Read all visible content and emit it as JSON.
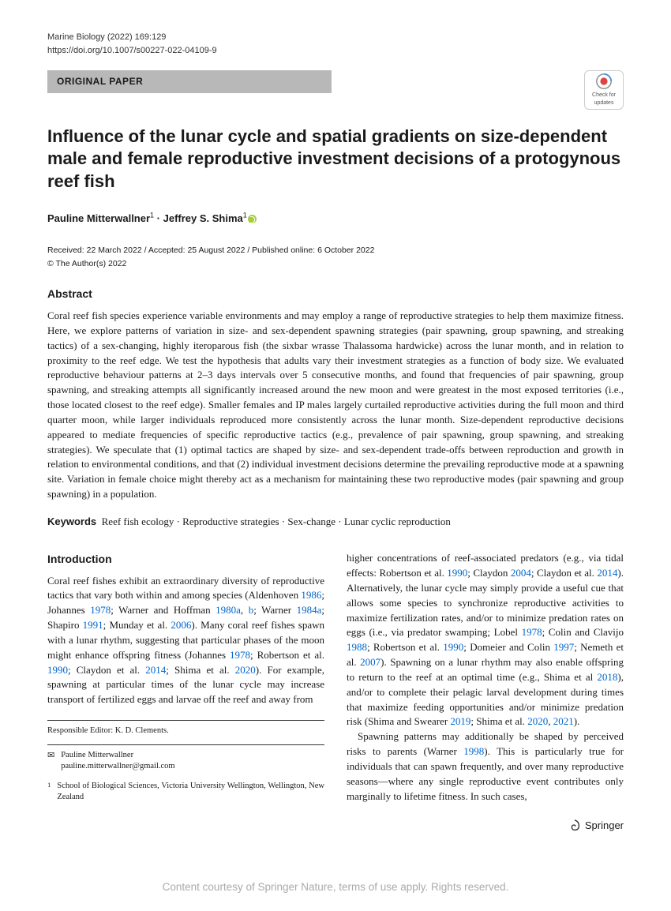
{
  "journal_citation": "Marine Biology (2022) 169:129",
  "doi": "https://doi.org/10.1007/s00227-022-04109-9",
  "paper_type": "ORIGINAL PAPER",
  "updates_badge": "Check for updates",
  "title": "Influence of the lunar cycle and spatial gradients on size-dependent male and female reproductive investment decisions of a protogynous reef fish",
  "authors_html": "Pauline Mitterwallner<sup>1</sup> · Jeffrey S. Shima<sup>1</sup>",
  "dates": "Received: 22 March 2022 / Accepted: 25 August 2022 / Published online: 6 October 2022",
  "copyright": "© The Author(s) 2022",
  "abstract_heading": "Abstract",
  "abstract": "Coral reef fish species experience variable environments and may employ a range of reproductive strategies to help them maximize fitness. Here, we explore patterns of variation in size- and sex-dependent spawning strategies (pair spawning, group spawning, and streaking tactics) of a sex-changing, highly iteroparous fish (the sixbar wrasse Thalassoma hardwicke) across the lunar month, and in relation to proximity to the reef edge. We test the hypothesis that adults vary their investment strategies as a function of body size. We evaluated reproductive behaviour patterns at 2–3 days intervals over 5 consecutive months, and found that frequencies of pair spawning, group spawning, and streaking attempts all significantly increased around the new moon and were greatest in the most exposed territories (i.e., those located closest to the reef edge). Smaller females and IP males largely curtailed reproductive activities during the full moon and third quarter moon, while larger individuals reproduced more consistently across the lunar month. Size-dependent reproductive decisions appeared to mediate frequencies of specific reproductive tactics (e.g., prevalence of pair spawning, group spawning, and streaking strategies). We speculate that (1) optimal tactics are shaped by size- and sex-dependent trade-offs between reproduction and growth in relation to environmental conditions, and that (2) individual investment decisions determine the prevailing reproductive mode at a spawning site. Variation in female choice might thereby act as a mechanism for maintaining these two reproductive modes (pair spawning and group spawning) in a population.",
  "keywords_label": "Keywords",
  "keywords": "Reef fish ecology · Reproductive strategies · Sex-change · Lunar cyclic reproduction",
  "intro_heading": "Introduction",
  "col1_para": "Coral reef fishes exhibit an extraordinary diversity of reproductive tactics that vary both within and among species (Aldenhoven <span class=\"cite-link\">1986</span>; Johannes <span class=\"cite-link\">1978</span>; Warner and Hoffman <span class=\"cite-link\">1980a</span>, <span class=\"cite-link\">b</span>; Warner <span class=\"cite-link\">1984a</span>; Shapiro <span class=\"cite-link\">1991</span>; Munday et al. <span class=\"cite-link\">2006</span>). Many coral reef fishes spawn with a lunar rhythm, suggesting that particular phases of the moon might enhance offspring fitness (Johannes <span class=\"cite-link\">1978</span>; Robertson et al. <span class=\"cite-link\">1990</span>; Claydon et al. <span class=\"cite-link\">2014</span>; Shima et al. <span class=\"cite-link\">2020</span>). For example, spawning at particular times of the lunar cycle may increase transport of fertilized eggs and larvae off the reef and away from",
  "col2_para1": "higher concentrations of reef-associated predators (e.g., via tidal effects: Robertson et al. <span class=\"cite-link\">1990</span>; Claydon <span class=\"cite-link\">2004</span>; Claydon et al. <span class=\"cite-link\">2014</span>). Alternatively, the lunar cycle may simply provide a useful cue that allows some species to synchronize reproductive activities to maximize fertilization rates, and/or to minimize predation rates on eggs (i.e., via predator swamping; Lobel <span class=\"cite-link\">1978</span>; Colin and Clavijo <span class=\"cite-link\">1988</span>; Robertson et al. <span class=\"cite-link\">1990</span>; Domeier and Colin <span class=\"cite-link\">1997</span>; Nemeth et al. <span class=\"cite-link\">2007</span>). Spawning on a lunar rhythm may also enable offspring to return to the reef at an optimal time (e.g., Shima et al <span class=\"cite-link\">2018</span>), and/or to complete their pelagic larval development during times that maximize feeding opportunities and/or minimize predation risk (Shima and Swearer <span class=\"cite-link\">2019</span>; Shima et al. <span class=\"cite-link\">2020</span>, <span class=\"cite-link\">2021</span>).",
  "col2_para2": "Spawning patterns may additionally be shaped by perceived risks to parents (Warner <span class=\"cite-link\">1998</span>). This is particularly true for individuals that can spawn frequently, and over many reproductive seasons—where any single reproductive event contributes only marginally to lifetime fitness. In such cases,",
  "responsible_editor": "Responsible Editor: K. D. Clements.",
  "corr_name": "Pauline Mitterwallner",
  "corr_email": "pauline.mitterwallner@gmail.com",
  "affil_num": "1",
  "affiliation": "School of Biological Sciences, Victoria University Wellington, Wellington, New Zealand",
  "publisher": "Springer",
  "watermark": "Content courtesy of Springer Nature, terms of use apply. Rights reserved."
}
